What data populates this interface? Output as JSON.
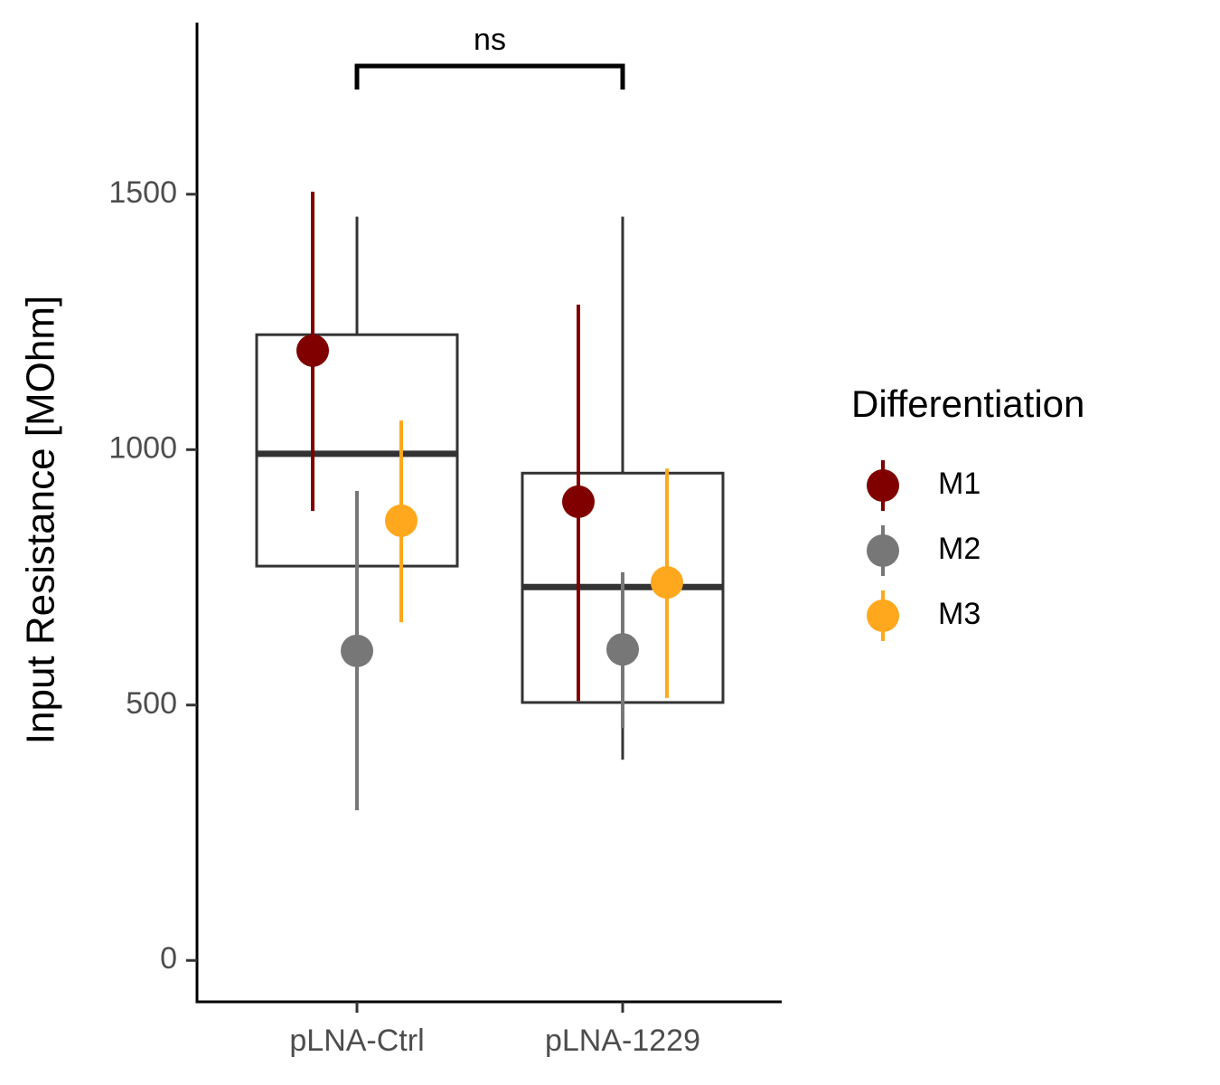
{
  "chart_data": {
    "type": "box",
    "y_label": "Input Resistance [MOhm]",
    "categories": [
      "pLNA-Ctrl",
      "pLNA-1229"
    ],
    "whisker_low": [
      384,
      393
    ],
    "q1": [
      772,
      505
    ],
    "median": [
      992,
      731
    ],
    "q3": [
      1225,
      954
    ],
    "whisker_high": [
      1456,
      1456
    ],
    "box_color": "#333333",
    "series": [
      {
        "name": "M1",
        "color": "#800000",
        "values": [
          1194,
          898
        ],
        "error_low": [
          880,
          508
        ],
        "error_high": [
          1505,
          1284
        ]
      },
      {
        "name": "M2",
        "color": "#777777",
        "values": [
          606,
          609
        ],
        "error_low": [
          294,
          455
        ],
        "error_high": [
          919,
          760
        ]
      },
      {
        "name": "M3",
        "color": "#FFA81E",
        "values": [
          861,
          740
        ],
        "error_low": [
          662,
          514
        ],
        "error_high": [
          1057,
          963
        ]
      }
    ],
    "significance_label": "ns",
    "legend_title": "Differentiation",
    "legend_position": "right",
    "ylim": [
      -81,
      1836
    ],
    "yticks": [
      0,
      500,
      1000,
      1500
    ]
  }
}
